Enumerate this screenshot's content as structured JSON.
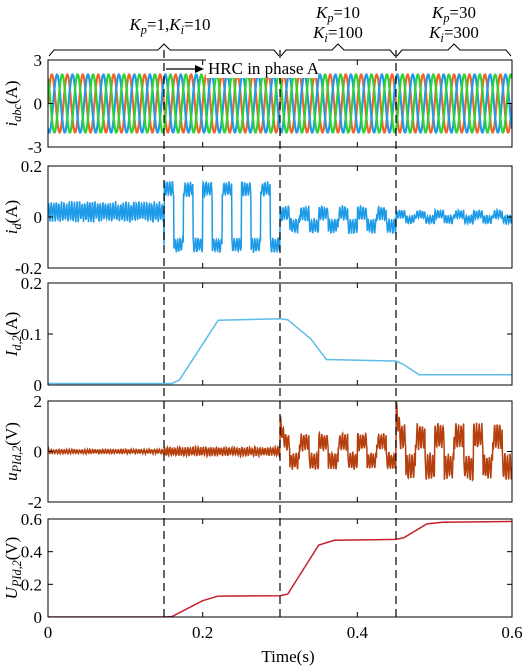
{
  "chart_data": {
    "type": "line",
    "xlabel": "Time(s)",
    "xlim": [
      0,
      0.6
    ],
    "xticks": [
      "0",
      "0.2",
      "0.4",
      "0.6"
    ],
    "xtick_values": [
      0,
      0.2,
      0.4,
      0.6
    ],
    "vlines_at": [
      0.15,
      0.3,
      0.45
    ],
    "annotations": {
      "segment1": {
        "parts": [
          {
            "t": "K",
            "i": true
          },
          {
            "t": "p",
            "sub": true,
            "i": true
          },
          {
            "t": "=1,"
          },
          {
            "t": "K",
            "i": true
          },
          {
            "t": "i",
            "sub": true,
            "i": true
          },
          {
            "t": "=10"
          }
        ]
      },
      "segment2_line1": {
        "parts": [
          {
            "t": "K",
            "i": true
          },
          {
            "t": "p",
            "sub": true,
            "i": true
          },
          {
            "t": "=10"
          }
        ]
      },
      "segment2_line2": {
        "parts": [
          {
            "t": "K",
            "i": true
          },
          {
            "t": "i",
            "sub": true,
            "i": true
          },
          {
            "t": "=100"
          }
        ]
      },
      "segment3_line1": {
        "parts": [
          {
            "t": "K",
            "i": true
          },
          {
            "t": "p",
            "sub": true,
            "i": true
          },
          {
            "t": "=30"
          }
        ]
      },
      "segment3_line2": {
        "parts": [
          {
            "t": "K",
            "i": true
          },
          {
            "t": "i",
            "sub": true,
            "i": true
          },
          {
            "t": "=300"
          }
        ]
      },
      "arrow_label": "HRC in phase A",
      "arrow_from_time": 0.15
    },
    "panels": [
      {
        "ylabel_parts": [
          {
            "t": "i",
            "i": true
          },
          {
            "t": "abc",
            "sub": true,
            "i": true
          },
          {
            "t": "(A)"
          }
        ],
        "ylim": [
          -3,
          3
        ],
        "yticks": [
          "3",
          "0",
          "-3"
        ],
        "ytick_values": [
          3,
          0,
          -3
        ],
        "series": [
          {
            "color": "#f2622a",
            "values": {
              "amplitude": 2.0,
              "frequency_hz": 50,
              "phase_deg": 0
            }
          },
          {
            "color": "#1e9be8",
            "values": {
              "amplitude": 2.0,
              "frequency_hz": 50,
              "phase_deg": -120
            }
          },
          {
            "color": "#2fd331",
            "values": {
              "amplitude": 2.0,
              "frequency_hz": 50,
              "phase_deg": 120
            }
          }
        ]
      },
      {
        "ylabel_parts": [
          {
            "t": "i",
            "i": true
          },
          {
            "t": "d",
            "sub": true,
            "i": true
          },
          {
            "t": "(A)"
          }
        ],
        "ylim": [
          -0.2,
          0.2
        ],
        "yticks": [
          "0.2",
          "0",
          "-0.2"
        ],
        "ytick_values": [
          0.2,
          0,
          -0.2
        ],
        "series": [
          {
            "color": "#1e9be8",
            "values": {
              "segments": [
                {
                  "t": [
                    0,
                    0.15
                  ],
                  "mean": 0.02,
                  "ripple_pp": 0.07,
                  "square_pp": 0
                },
                {
                  "t": [
                    0.15,
                    0.3
                  ],
                  "mean": 0.0,
                  "ripple_pp": 0.05,
                  "square_pp": 0.22
                },
                {
                  "t": [
                    0.3,
                    0.45
                  ],
                  "mean": -0.01,
                  "ripple_pp": 0.05,
                  "square_pp": 0.05
                },
                {
                  "t": [
                    0.45,
                    0.6
                  ],
                  "mean": 0.0,
                  "ripple_pp": 0.03,
                  "square_pp": 0.02
                }
              ]
            }
          }
        ]
      },
      {
        "ylabel_parts": [
          {
            "t": "I",
            "i": true
          },
          {
            "t": "d,2",
            "sub": true,
            "i": true
          },
          {
            "t": "(A)"
          }
        ],
        "ylim": [
          0,
          0.2
        ],
        "yticks": [
          "0.2",
          "0.1",
          "0"
        ],
        "ytick_values": [
          0.2,
          0.1,
          0
        ],
        "series": [
          {
            "color": "#5bbcea",
            "values": {
              "t": [
                0,
                0.16,
                0.17,
                0.2,
                0.22,
                0.3,
                0.31,
                0.34,
                0.36,
                0.45,
                0.46,
                0.48,
                0.6
              ],
              "y": [
                0.003,
                0.003,
                0.01,
                0.08,
                0.127,
                0.13,
                0.128,
                0.09,
                0.05,
                0.047,
                0.04,
                0.02,
                0.02
              ]
            }
          }
        ]
      },
      {
        "ylabel_parts": [
          {
            "t": "u",
            "i": true
          },
          {
            "t": "PId,2",
            "sub": true,
            "i": true
          },
          {
            "t": "(V)"
          }
        ],
        "ylim": [
          -2,
          2
        ],
        "yticks": [
          "2",
          "0",
          "-2"
        ],
        "ytick_values": [
          2,
          0,
          -2
        ],
        "series": [
          {
            "color": "#b5400e",
            "values": {
              "segments": [
                {
                  "t": [
                    0,
                    0.15
                  ],
                  "mean": 0.0,
                  "ripple_pp": 0.15,
                  "square_pp": 0
                },
                {
                  "t": [
                    0.15,
                    0.3
                  ],
                  "mean": 0.0,
                  "ripple_pp": 0.3,
                  "square_pp": 0
                },
                {
                  "t": [
                    0.3,
                    0.45
                  ],
                  "mean": 0.0,
                  "ripple_pp": 0.6,
                  "square_pp": 0.75
                },
                {
                  "t": [
                    0.45,
                    0.6
                  ],
                  "mean": 0.0,
                  "ripple_pp": 0.9,
                  "square_pp": 1.2
                }
              ],
              "spikes": [
                {
                  "t": 0.3,
                  "y": 1.1
                },
                {
                  "t": 0.45,
                  "y": 1.4
                }
              ]
            }
          }
        ]
      },
      {
        "ylabel_parts": [
          {
            "t": "U",
            "i": true
          },
          {
            "t": "PId,2",
            "sub": true,
            "i": true
          },
          {
            "t": "(V)"
          }
        ],
        "ylim": [
          0,
          0.6
        ],
        "yticks": [
          "0.6",
          "0.4",
          "0.2",
          "0"
        ],
        "ytick_values": [
          0.6,
          0.4,
          0.2,
          0
        ],
        "series": [
          {
            "color": "#c4202f",
            "values": {
              "t": [
                0,
                0.15,
                0.16,
                0.2,
                0.22,
                0.3,
                0.31,
                0.35,
                0.37,
                0.45,
                0.46,
                0.49,
                0.51,
                0.6
              ],
              "y": [
                0.0,
                0.0,
                0.002,
                0.1,
                0.128,
                0.13,
                0.14,
                0.44,
                0.47,
                0.475,
                0.485,
                0.57,
                0.58,
                0.585
              ]
            }
          }
        ]
      }
    ]
  }
}
